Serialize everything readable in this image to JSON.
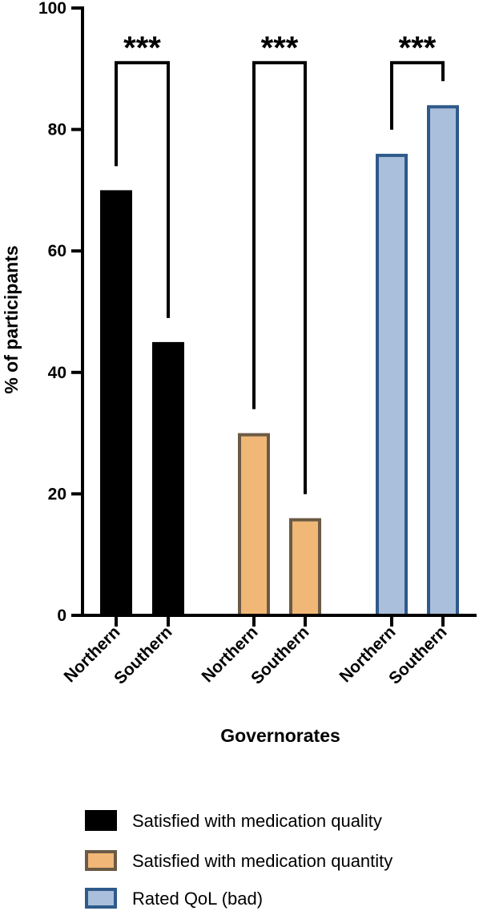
{
  "chart_data": {
    "type": "bar",
    "xlabel": "Governorates",
    "ylabel": "% of participants",
    "ylim": [
      0,
      100
    ],
    "yticks": [
      0,
      20,
      40,
      60,
      80,
      100
    ],
    "grid": false,
    "legend_position": "bottom",
    "series": [
      {
        "name": "Satisfied with medication quality",
        "color": "#000000",
        "edge_color": "#000000",
        "categories": [
          "Northern",
          "Southern"
        ],
        "values": [
          70,
          45
        ],
        "significance": "***"
      },
      {
        "name": "Satisfied with medication quantity",
        "color": "#F0B777",
        "edge_color": "#6B5A45",
        "categories": [
          "Northern",
          "Southern"
        ],
        "values": [
          30,
          16
        ],
        "significance": "***"
      },
      {
        "name": "Rated QoL (bad)",
        "color": "#A9BFDB",
        "edge_color": "#2F5A8A",
        "categories": [
          "Northern",
          "Southern"
        ],
        "values": [
          76,
          84
        ],
        "significance": "***"
      }
    ]
  }
}
